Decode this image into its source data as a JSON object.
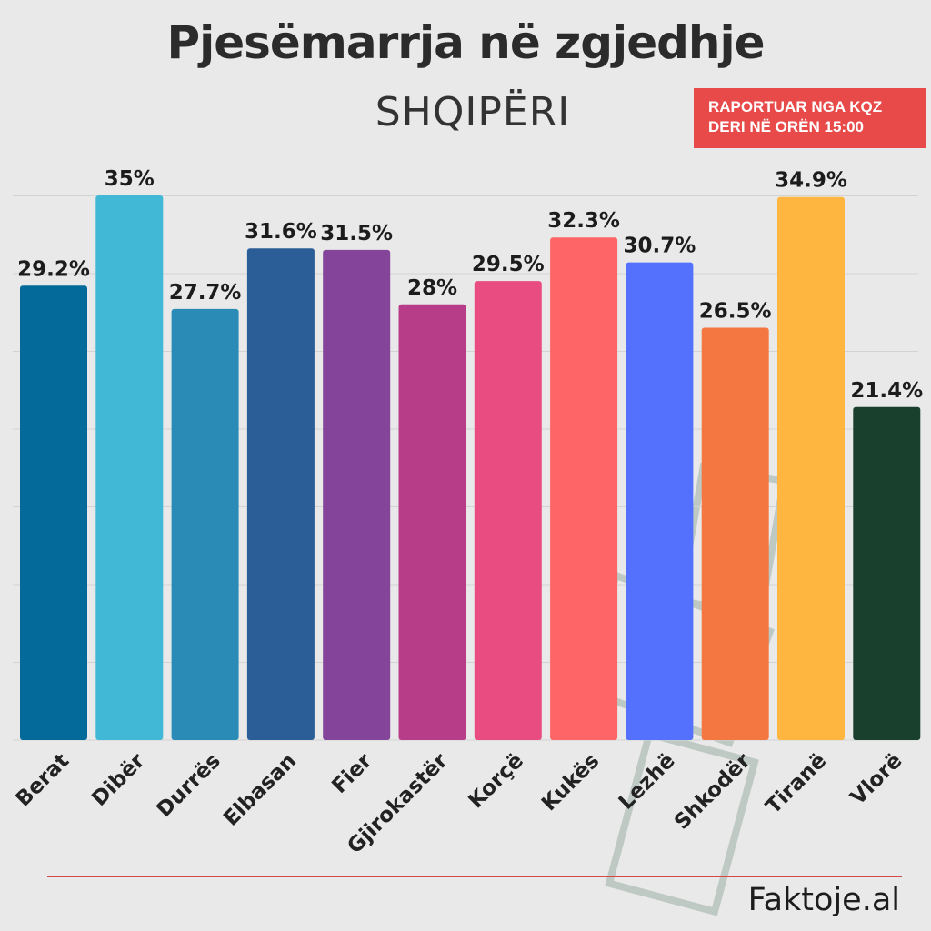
{
  "title": "Pjesëmarrja në zgjedhje",
  "subtitle": "SHQIPËRI",
  "badge": {
    "line1": "RAPORTUAR NGA KQZ",
    "line2": "DERI NË ORËN 15:00"
  },
  "brand": "Faktoje.al",
  "chart_data": {
    "type": "bar",
    "categories": [
      "Berat",
      "Dibër",
      "Durrës",
      "Elbasan",
      "Fier",
      "Gjirokastër",
      "Korçë",
      "Kukës",
      "Lezhë",
      "Shkodër",
      "Tiranë",
      "Vlorë"
    ],
    "values": [
      29.2,
      35,
      27.7,
      31.6,
      31.5,
      28,
      29.5,
      32.3,
      30.7,
      26.5,
      34.9,
      21.4
    ],
    "data_labels": [
      "29.2%",
      "35%",
      "27.7%",
      "31.6%",
      "31.5%",
      "28%",
      "29.5%",
      "32.3%",
      "30.7%",
      "26.5%",
      "34.9%",
      "21.4%"
    ],
    "colors": [
      "#046a9a",
      "#40b8d6",
      "#2a8bb6",
      "#2b5d96",
      "#834499",
      "#b83d89",
      "#e84c80",
      "#fd6566",
      "#5371fd",
      "#f47641",
      "#feb640",
      "#193f2d"
    ],
    "ylim": [
      0,
      35
    ],
    "grid": true
  }
}
